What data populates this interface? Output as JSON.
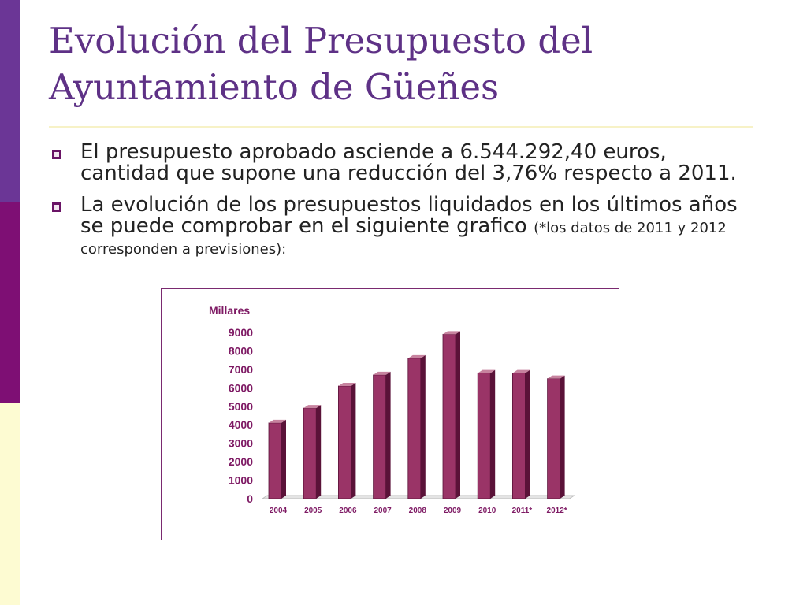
{
  "slide": {
    "title_line1": "Evolución del Presupuesto del",
    "title_line2": "Ayuntamiento de Güeñes",
    "bullets": [
      {
        "text": "El presupuesto aprobado asciende a 6.544.292,40 euros, cantidad que supone una reducción del 3,76% respecto a 2011."
      },
      {
        "text": "La evolución de los presupuestos liquidados en los últimos años se puede comprobar en el siguiente grafico ",
        "note": "(*los datos de 2011 y 2012 corresponden a previsiones):"
      }
    ],
    "colors": {
      "title": "#5e3186",
      "bar_front": "#9a3467",
      "bar_side": "#5a1238",
      "bar_top": "#c7839f",
      "axis_text": "#7e1a64"
    }
  },
  "chart_data": {
    "type": "bar",
    "ylabel": "Millares",
    "categories": [
      "2004",
      "2005",
      "2006",
      "2007",
      "2008",
      "2009",
      "2010",
      "2011*",
      "2012*"
    ],
    "values": [
      4100,
      4900,
      6100,
      6700,
      7600,
      8900,
      6800,
      6800,
      6500
    ],
    "ylim": [
      0,
      9000
    ],
    "yticks": [
      0,
      1000,
      2000,
      3000,
      4000,
      5000,
      6000,
      7000,
      8000,
      9000
    ],
    "grid": false
  }
}
